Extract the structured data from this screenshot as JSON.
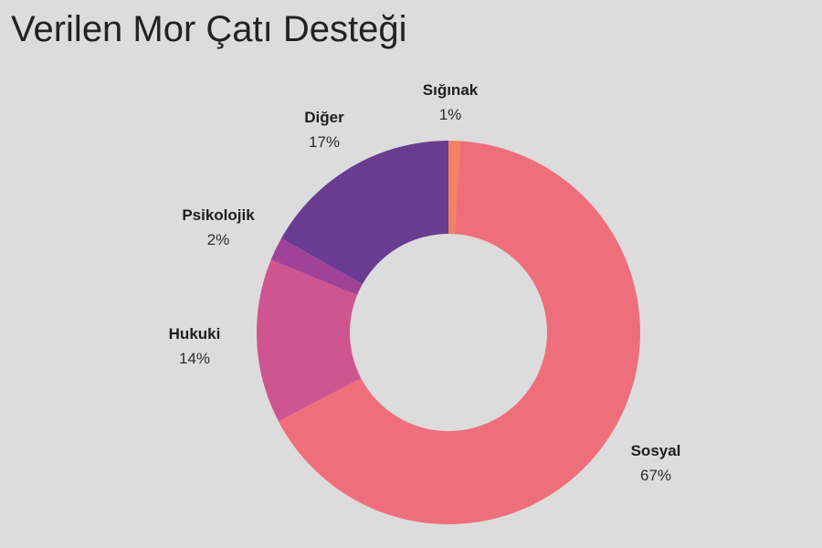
{
  "chart_data": {
    "type": "pie",
    "title": "Verilen Mor Çatı Desteği",
    "series": [
      {
        "name": "Sığınak",
        "value": 1,
        "label": "1%",
        "color": "#f4825f"
      },
      {
        "name": "Sosyal",
        "value": 67,
        "label": "67%",
        "color": "#ee6f7b"
      },
      {
        "name": "Hukuki",
        "value": 14,
        "label": "14%",
        "color": "#cf5590"
      },
      {
        "name": "Psikolojik",
        "value": 2,
        "label": "2%",
        "color": "#a04298"
      },
      {
        "name": "Diğer",
        "value": 17,
        "label": "17%",
        "color": "#6a3c91"
      }
    ],
    "hole": "donut"
  }
}
